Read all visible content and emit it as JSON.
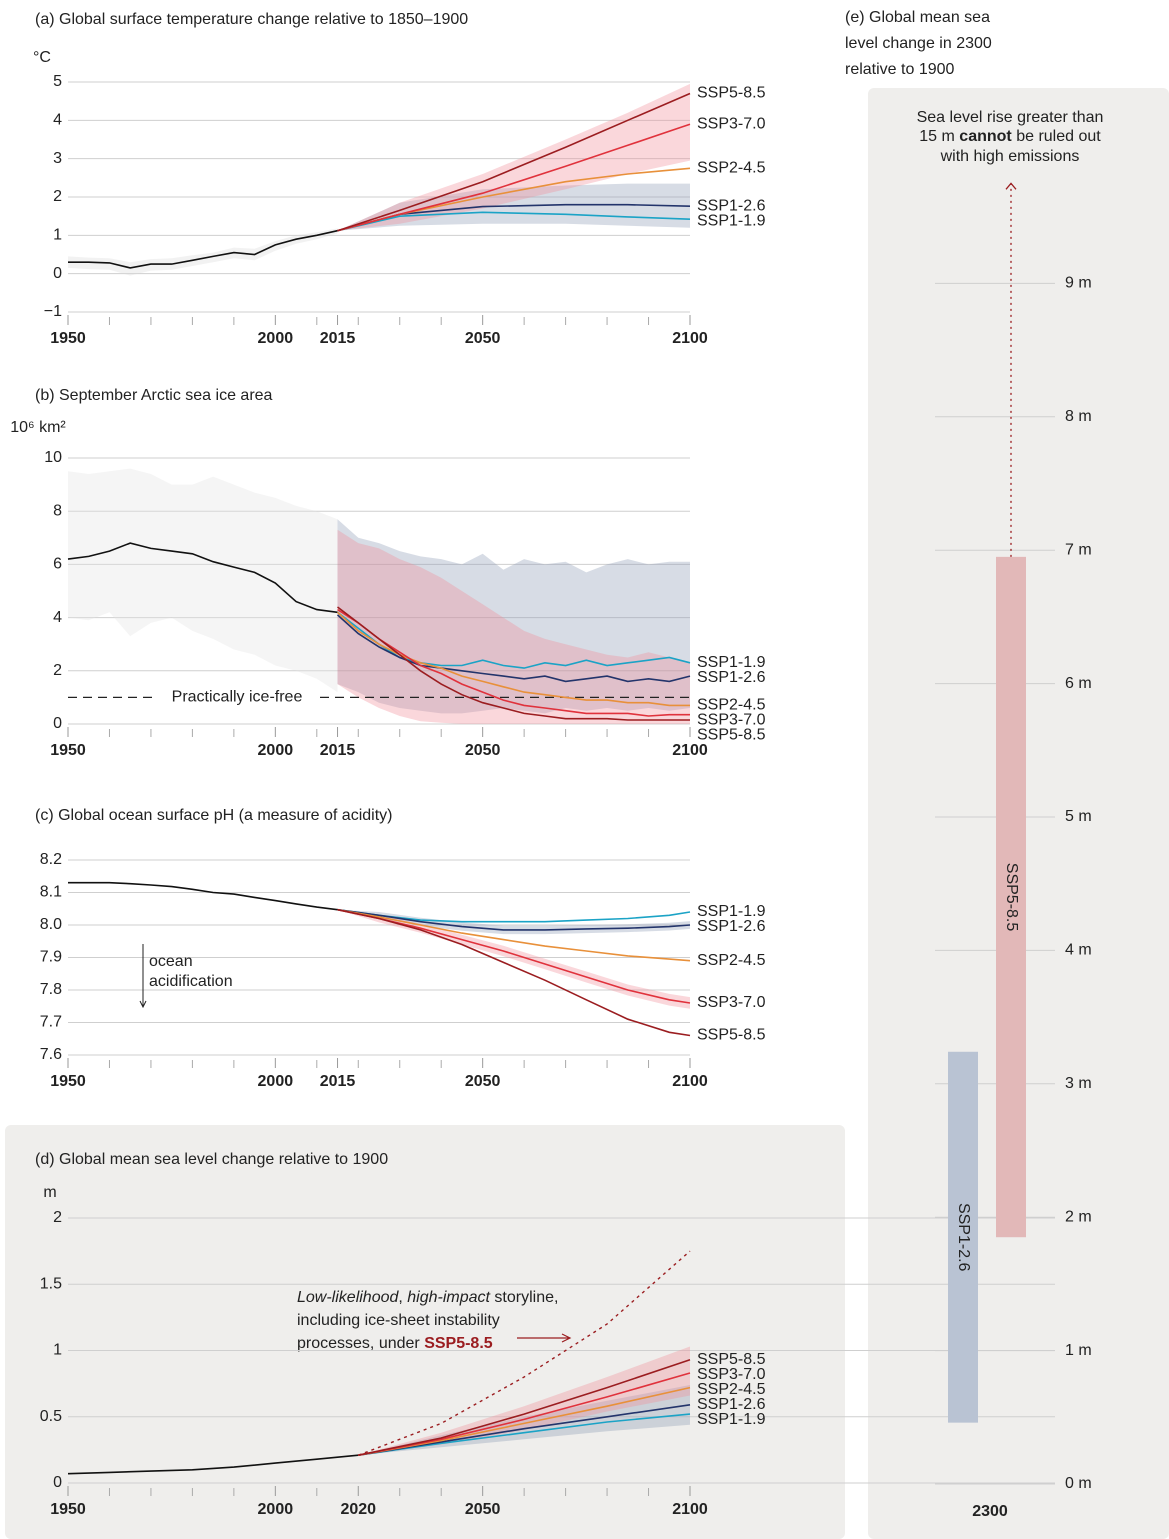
{
  "chart_data": [
    {
      "type": "line",
      "title": "(a) Global surface temperature change relative to 1850–1900",
      "unit": "°C",
      "xlim": [
        1950,
        2100
      ],
      "xticks": [
        1950,
        2000,
        2015,
        2050,
        2100
      ],
      "xminor": [
        1960,
        1970,
        1980,
        1990,
        2010,
        2020,
        2030,
        2040,
        2060,
        2070,
        2080,
        2090
      ],
      "ylim": [
        -1,
        5
      ],
      "yticks": [
        {
          "value": -1,
          "label": "−1"
        },
        0,
        1,
        2,
        3,
        4,
        5
      ],
      "grid": true,
      "historical": {
        "color": "#111111",
        "band_color": "#d9d9d9",
        "x": [
          1950,
          1955,
          1960,
          1965,
          1970,
          1975,
          1980,
          1985,
          1990,
          1995,
          2000,
          2005,
          2010,
          2015
        ],
        "values": [
          0.3,
          0.3,
          0.28,
          0.15,
          0.25,
          0.25,
          0.35,
          0.45,
          0.55,
          0.5,
          0.75,
          0.9,
          1.0,
          1.12
        ],
        "low": [
          0.15,
          0.12,
          0.1,
          -0.05,
          0.08,
          0.1,
          0.2,
          0.3,
          0.4,
          0.35,
          0.6,
          0.78,
          0.9,
          1.05
        ],
        "high": [
          0.45,
          0.42,
          0.4,
          0.3,
          0.38,
          0.4,
          0.48,
          0.55,
          0.68,
          0.65,
          0.85,
          1.0,
          1.08,
          1.18
        ]
      },
      "scenario_x": [
        2015,
        2030,
        2050,
        2070,
        2085,
        2100
      ],
      "series": [
        {
          "name": "SSP1-1.9",
          "color": "#1ba3c6",
          "values": [
            1.12,
            1.5,
            1.6,
            1.55,
            1.48,
            1.42
          ]
        },
        {
          "name": "SSP1-2.6",
          "color": "#23346b",
          "values": [
            1.12,
            1.55,
            1.75,
            1.8,
            1.8,
            1.76
          ],
          "band_color": "#8d9ab5",
          "low": [
            1.12,
            1.25,
            1.3,
            1.3,
            1.25,
            1.2
          ],
          "high": [
            1.12,
            1.85,
            2.2,
            2.3,
            2.35,
            2.35
          ]
        },
        {
          "name": "SSP2-4.5",
          "color": "#e8903a",
          "values": [
            1.12,
            1.55,
            2.0,
            2.4,
            2.6,
            2.75
          ]
        },
        {
          "name": "SSP3-7.0",
          "color": "#e0323c",
          "values": [
            1.12,
            1.55,
            2.1,
            2.8,
            3.35,
            3.9
          ],
          "band_color": "#f28b98",
          "low": [
            1.12,
            1.3,
            1.7,
            2.2,
            2.6,
            2.95
          ],
          "high": [
            1.12,
            1.85,
            2.6,
            3.5,
            4.2,
            4.95
          ]
        },
        {
          "name": "SSP5-8.5",
          "color": "#9b1d20",
          "values": [
            1.12,
            1.65,
            2.4,
            3.3,
            4.0,
            4.7
          ]
        }
      ]
    },
    {
      "type": "line",
      "title": "(b) September Arctic sea ice area",
      "unit": "10⁶ km²",
      "xlim": [
        1950,
        2100
      ],
      "xticks": [
        1950,
        2000,
        2015,
        2050,
        2100
      ],
      "xminor": [
        1960,
        1970,
        1980,
        1990,
        2010,
        2020,
        2030,
        2040,
        2060,
        2070,
        2080,
        2090
      ],
      "ylim": [
        0,
        10
      ],
      "yticks": [
        0,
        2,
        4,
        6,
        8,
        10
      ],
      "grid": true,
      "threshold": {
        "value": 1,
        "label": "Practically ice-free"
      },
      "historical": {
        "color": "#111111",
        "band_color": "#e3e3e3",
        "x": [
          1950,
          1955,
          1960,
          1965,
          1970,
          1975,
          1980,
          1985,
          1990,
          1995,
          2000,
          2005,
          2010,
          2015
        ],
        "values": [
          6.2,
          6.3,
          6.5,
          6.8,
          6.6,
          6.5,
          6.4,
          6.1,
          5.9,
          5.7,
          5.3,
          4.6,
          4.3,
          4.2
        ],
        "low": [
          4.0,
          3.9,
          4.2,
          3.3,
          3.8,
          4.0,
          3.5,
          3.2,
          2.8,
          2.6,
          2.2,
          2.0,
          1.7,
          1.2
        ],
        "high": [
          9.5,
          9.4,
          9.5,
          9.6,
          9.4,
          9.0,
          9.0,
          9.3,
          9.0,
          8.7,
          8.5,
          8.2,
          8.0,
          7.7
        ]
      },
      "scenario_x": [
        2015,
        2020,
        2025,
        2030,
        2035,
        2040,
        2045,
        2050,
        2055,
        2060,
        2065,
        2070,
        2075,
        2080,
        2085,
        2090,
        2095,
        2100
      ],
      "series": [
        {
          "name": "SSP1-1.9",
          "color": "#1ba3c6",
          "values": [
            4.2,
            3.6,
            3.0,
            2.5,
            2.3,
            2.2,
            2.2,
            2.4,
            2.2,
            2.1,
            2.3,
            2.2,
            2.4,
            2.2,
            2.3,
            2.4,
            2.5,
            2.3
          ]
        },
        {
          "name": "SSP1-2.6",
          "color": "#23346b",
          "values": [
            4.1,
            3.4,
            2.9,
            2.5,
            2.2,
            2.1,
            2.0,
            1.9,
            1.8,
            1.7,
            1.8,
            1.6,
            1.7,
            1.8,
            1.6,
            1.7,
            1.6,
            1.8
          ],
          "band_color": "#8d9ab5",
          "low": [
            1.5,
            1.2,
            0.8,
            0.6,
            0.5,
            0.4,
            0.4,
            0.5,
            0.6,
            0.5,
            0.4,
            0.6,
            0.5,
            0.6,
            0.5,
            0.6,
            0.5,
            0.6
          ],
          "high": [
            7.7,
            7.0,
            6.8,
            6.5,
            6.3,
            6.2,
            6.0,
            6.4,
            5.8,
            6.2,
            6.0,
            6.1,
            5.7,
            6.0,
            6.2,
            6.0,
            6.1,
            6.1
          ]
        },
        {
          "name": "SSP2-4.5",
          "color": "#e8903a",
          "values": [
            4.2,
            3.5,
            3.0,
            2.6,
            2.3,
            2.1,
            1.8,
            1.6,
            1.4,
            1.2,
            1.1,
            1.0,
            0.9,
            0.9,
            0.8,
            0.8,
            0.7,
            0.7
          ]
        },
        {
          "name": "SSP3-7.0",
          "color": "#e0323c",
          "values": [
            4.3,
            3.8,
            3.2,
            2.7,
            2.2,
            1.9,
            1.5,
            1.2,
            0.9,
            0.7,
            0.6,
            0.5,
            0.4,
            0.4,
            0.4,
            0.3,
            0.35,
            0.35
          ],
          "band_color": "#f28b98",
          "low": [
            1.5,
            1.0,
            0.6,
            0.3,
            0.1,
            0.05,
            0,
            0,
            0,
            0,
            0,
            0,
            0,
            0,
            0,
            0,
            0,
            0
          ],
          "high": [
            7.3,
            6.8,
            6.6,
            6.2,
            5.9,
            5.5,
            5.0,
            4.5,
            4.0,
            3.5,
            3.2,
            3.0,
            2.8,
            2.6,
            2.5,
            2.7,
            2.5,
            2.3
          ]
        },
        {
          "name": "SSP5-8.5",
          "color": "#9b1d20",
          "values": [
            4.4,
            3.8,
            3.2,
            2.6,
            2.0,
            1.5,
            1.1,
            0.8,
            0.6,
            0.4,
            0.3,
            0.2,
            0.2,
            0.2,
            0.15,
            0.15,
            0.15,
            0.15
          ]
        }
      ]
    },
    {
      "type": "line",
      "title": "(c) Global ocean surface pH (a measure of acidity)",
      "xlim": [
        1950,
        2100
      ],
      "xticks": [
        1950,
        2000,
        2015,
        2050,
        2100
      ],
      "xminor": [
        1960,
        1970,
        1980,
        1990,
        2010,
        2020,
        2030,
        2040,
        2060,
        2070,
        2080,
        2090
      ],
      "ylim": [
        7.6,
        8.2
      ],
      "yticks": [
        7.6,
        7.7,
        7.8,
        7.9,
        {
          "value": 8,
          "label": "8.0"
        },
        8.1,
        8.2
      ],
      "grid": true,
      "annotation": [
        "ocean",
        "acidification"
      ],
      "historical": {
        "color": "#111111",
        "x": [
          1950,
          1955,
          1960,
          1965,
          1970,
          1975,
          1980,
          1985,
          1990,
          1995,
          2000,
          2005,
          2010,
          2015
        ],
        "values": [
          8.13,
          8.13,
          8.13,
          8.127,
          8.123,
          8.118,
          8.11,
          8.1,
          8.095,
          8.085,
          8.075,
          8.065,
          8.055,
          8.047
        ]
      },
      "scenario_x": [
        2015,
        2025,
        2035,
        2045,
        2055,
        2065,
        2075,
        2085,
        2095,
        2100
      ],
      "series": [
        {
          "name": "SSP1-1.9",
          "color": "#1ba3c6",
          "values": [
            8.047,
            8.03,
            8.015,
            8.01,
            8.01,
            8.01,
            8.015,
            8.02,
            8.03,
            8.04
          ]
        },
        {
          "name": "SSP1-2.6",
          "color": "#23346b",
          "values": [
            8.047,
            8.03,
            8.01,
            7.995,
            7.985,
            7.985,
            7.988,
            7.99,
            7.995,
            8.0
          ],
          "band_color": "#8d9ab5",
          "low": [
            8.047,
            8.02,
            7.998,
            7.982,
            7.972,
            7.972,
            7.975,
            7.978,
            7.983,
            7.988
          ],
          "high": [
            8.047,
            8.04,
            8.022,
            8.008,
            7.998,
            7.998,
            8.0,
            8.002,
            8.007,
            8.012
          ]
        },
        {
          "name": "SSP2-4.5",
          "color": "#e8903a",
          "values": [
            8.047,
            8.025,
            8.0,
            7.975,
            7.955,
            7.935,
            7.92,
            7.905,
            7.895,
            7.89
          ]
        },
        {
          "name": "SSP3-7.0",
          "color": "#e0323c",
          "values": [
            8.047,
            8.02,
            7.99,
            7.955,
            7.92,
            7.88,
            7.84,
            7.8,
            7.77,
            7.76
          ],
          "band_color": "#f28b98",
          "low": [
            8.047,
            8.008,
            7.976,
            7.94,
            7.904,
            7.864,
            7.823,
            7.783,
            7.752,
            7.742
          ],
          "high": [
            8.047,
            8.032,
            8.004,
            7.97,
            7.936,
            7.896,
            7.857,
            7.817,
            7.788,
            7.778
          ]
        },
        {
          "name": "SSP5-8.5",
          "color": "#9b1d20",
          "values": [
            8.047,
            8.02,
            7.985,
            7.94,
            7.885,
            7.83,
            7.77,
            7.71,
            7.67,
            7.66
          ]
        }
      ]
    },
    {
      "type": "line",
      "title": "(d) Global mean sea level change relative to 1900",
      "unit": "m",
      "xlim": [
        1950,
        2100
      ],
      "xticks": [
        1950,
        2000,
        2020,
        2050,
        2100
      ],
      "xminor": [
        1960,
        1970,
        1980,
        1990,
        2010,
        2030,
        2040,
        2060,
        2070,
        2080,
        2090
      ],
      "ylim": [
        0,
        2
      ],
      "yticks": [
        0,
        0.5,
        1,
        1.5,
        2
      ],
      "grid": true,
      "historical": {
        "color": "#111111",
        "x": [
          1950,
          1960,
          1970,
          1980,
          1990,
          2000,
          2010,
          2020
        ],
        "values": [
          0.07,
          0.08,
          0.09,
          0.1,
          0.12,
          0.15,
          0.18,
          0.21
        ]
      },
      "scenario_x": [
        2020,
        2040,
        2060,
        2080,
        2100
      ],
      "storyline": {
        "color": "#9b1d20",
        "values": [
          0.21,
          0.45,
          0.8,
          1.2,
          1.75
        ],
        "label_parts": [
          "Low-likelihood",
          ", ",
          "high-impact",
          " storyline,",
          "including ice-sheet instability",
          "processes, under ",
          "SSP5-8.5"
        ]
      },
      "series": [
        {
          "name": "SSP1-1.9",
          "color": "#1ba3c6",
          "values": [
            0.21,
            0.3,
            0.38,
            0.46,
            0.52
          ]
        },
        {
          "name": "SSP1-2.6",
          "color": "#23346b",
          "values": [
            0.21,
            0.31,
            0.41,
            0.5,
            0.59
          ],
          "band_color": "#8d9ab5",
          "low": [
            0.21,
            0.27,
            0.33,
            0.39,
            0.44
          ],
          "high": [
            0.21,
            0.36,
            0.5,
            0.62,
            0.74
          ]
        },
        {
          "name": "SSP2-4.5",
          "color": "#e8903a",
          "values": [
            0.21,
            0.32,
            0.45,
            0.58,
            0.72
          ]
        },
        {
          "name": "SSP3-7.0",
          "color": "#e0323c",
          "values": [
            0.21,
            0.33,
            0.48,
            0.65,
            0.83
          ],
          "band_color": "#f28b98",
          "low": [
            0.21,
            0.29,
            0.4,
            0.54,
            0.66
          ],
          "high": [
            0.21,
            0.38,
            0.58,
            0.8,
            1.03
          ]
        },
        {
          "name": "SSP5-8.5",
          "color": "#9b1d20",
          "values": [
            0.21,
            0.34,
            0.52,
            0.72,
            0.93
          ]
        }
      ]
    },
    {
      "type": "bar",
      "title": [
        "(e) Global mean sea",
        "level change in 2300",
        "relative to 1900"
      ],
      "categories": [
        "2300"
      ],
      "ylim": [
        0,
        10
      ],
      "yticks": [
        {
          "value": 0,
          "label": "0 m"
        },
        {
          "value": 1,
          "label": "1 m"
        },
        {
          "value": 2,
          "label": "2 m"
        },
        {
          "value": 3,
          "label": "3 m"
        },
        {
          "value": 4,
          "label": "4 m"
        },
        {
          "value": 5,
          "label": "5 m"
        },
        {
          "value": 6,
          "label": "6 m"
        },
        {
          "value": 7,
          "label": "7 m"
        },
        {
          "value": 8,
          "label": "8 m"
        },
        {
          "value": 9,
          "label": "9 m"
        }
      ],
      "grid": true,
      "annotation_parts": [
        "Sea level rise greater than",
        "15 m ",
        "cannot",
        " be ruled out",
        "with high emissions"
      ],
      "series": [
        {
          "name": "SSP1-2.6",
          "color": "#b9c3d3",
          "text_color": "#23346b",
          "low": 0.46,
          "high": 3.24
        },
        {
          "name": "SSP5-8.5",
          "color": "#e2b8b8",
          "text_color": "#9b1d20",
          "low": 1.85,
          "high": 6.95,
          "arrow_to": 9.75
        }
      ]
    }
  ]
}
